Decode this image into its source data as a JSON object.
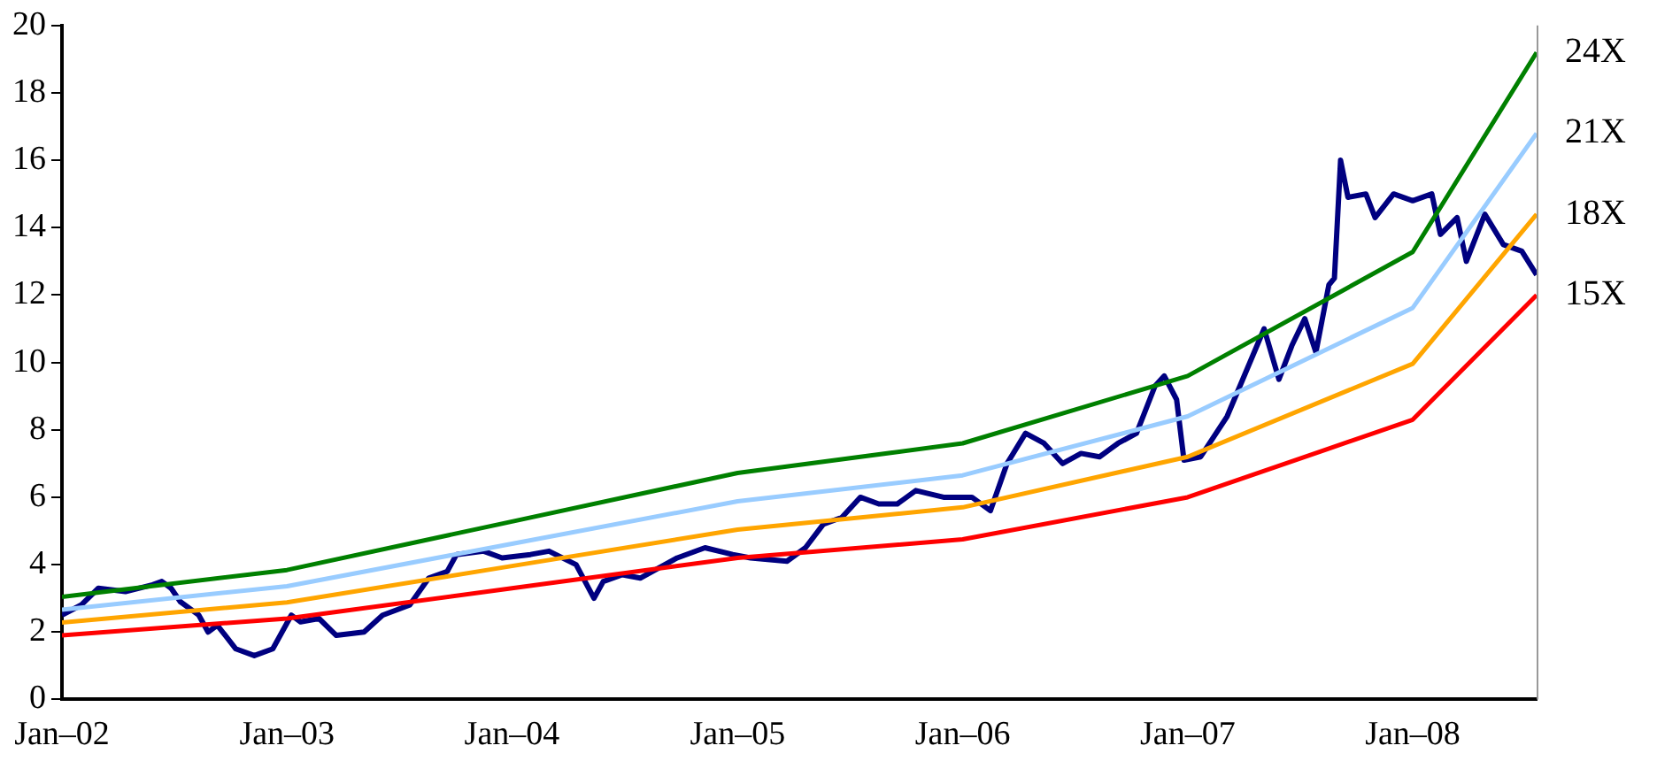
{
  "chart_data": {
    "type": "line",
    "xlim": [
      "2002-01-01",
      "2008-07-20"
    ],
    "xticks": [
      {
        "value": "2002-01-01",
        "label": "Jan–02"
      },
      {
        "value": "2003-01-01",
        "label": "Jan–03"
      },
      {
        "value": "2004-01-01",
        "label": "Jan–04"
      },
      {
        "value": "2005-01-01",
        "label": "Jan–05"
      },
      {
        "value": "2006-01-01",
        "label": "Jan–06"
      },
      {
        "value": "2007-01-01",
        "label": "Jan–07"
      },
      {
        "value": "2008-01-01",
        "label": "Jan–08"
      }
    ],
    "ylim": [
      0,
      20
    ],
    "yticks": [
      0,
      2,
      4,
      6,
      8,
      10,
      12,
      14,
      16,
      18,
      20
    ],
    "grid": false,
    "legend": false,
    "marker": "none",
    "line_style": "solid",
    "series": [
      {
        "name": "15X",
        "color": "#ff0000",
        "x": [
          "2002-01-01",
          "2003-01-01",
          "2004-01-01",
          "2005-01-01",
          "2006-01-01",
          "2007-01-01",
          "2008-01-01",
          "2008-07-20"
        ],
        "values": [
          1.9,
          2.4,
          3.3,
          4.2,
          4.75,
          6.0,
          8.3,
          12.0
        ]
      },
      {
        "name": "18X",
        "color": "#ffa500",
        "x": [
          "2002-01-01",
          "2003-01-01",
          "2004-01-01",
          "2005-01-01",
          "2006-01-01",
          "2007-01-01",
          "2008-01-01",
          "2008-07-20"
        ],
        "values": [
          2.28,
          2.88,
          3.96,
          5.04,
          5.7,
          7.2,
          9.96,
          14.4
        ]
      },
      {
        "name": "21X",
        "color": "#99ccff",
        "x": [
          "2002-01-01",
          "2003-01-01",
          "2004-01-01",
          "2005-01-01",
          "2006-01-01",
          "2007-01-01",
          "2008-01-01",
          "2008-07-20"
        ],
        "values": [
          2.66,
          3.36,
          4.62,
          5.88,
          6.65,
          8.4,
          11.62,
          16.8
        ]
      },
      {
        "name": "24X",
        "color": "#008000",
        "x": [
          "2002-01-01",
          "2003-01-01",
          "2004-01-01",
          "2005-01-01",
          "2006-01-01",
          "2007-01-01",
          "2008-01-01",
          "2008-07-20"
        ],
        "values": [
          3.04,
          3.84,
          5.28,
          6.72,
          7.6,
          9.6,
          13.28,
          19.2
        ]
      },
      {
        "color": "#000080",
        "x": [
          "2002-01-01",
          "2002-02-01",
          "2002-03-01",
          "2002-04-14",
          "2002-05-28",
          "2002-06-12",
          "2002-06-27",
          "2002-07-12",
          "2002-08-11",
          "2002-08-26",
          "2002-09-10",
          "2002-10-10",
          "2002-11-09",
          "2002-12-09",
          "2003-01-08",
          "2003-01-23",
          "2003-02-22",
          "2003-03-22",
          "2003-05-06",
          "2003-06-05",
          "2003-07-19",
          "2003-08-19",
          "2003-09-18",
          "2003-10-03",
          "2003-11-16",
          "2003-12-16",
          "2004-01-31",
          "2004-03-01",
          "2004-04-14",
          "2004-05-13",
          "2004-05-28",
          "2004-06-28",
          "2004-07-27",
          "2004-08-26",
          "2004-09-25",
          "2004-11-09",
          "2004-12-24",
          "2005-01-22",
          "2005-03-22",
          "2005-04-21",
          "2005-05-20",
          "2005-06-19",
          "2005-07-19",
          "2005-08-18",
          "2005-09-17",
          "2005-10-17",
          "2005-12-01",
          "2006-01-16",
          "2006-02-15",
          "2006-03-14",
          "2006-04-13",
          "2006-05-13",
          "2006-06-12",
          "2006-07-12",
          "2006-08-11",
          "2006-09-10",
          "2006-10-10",
          "2006-11-09",
          "2006-11-24",
          "2006-12-14",
          "2006-12-26",
          "2007-01-22",
          "2007-03-06",
          "2007-05-05",
          "2007-05-29",
          "2007-06-19",
          "2007-07-10",
          "2007-07-28",
          "2007-08-18",
          "2007-08-27",
          "2007-09-06",
          "2007-09-18",
          "2007-10-17",
          "2007-11-01",
          "2007-12-01",
          "2008-01-01",
          "2008-02-01",
          "2008-02-15",
          "2008-03-13",
          "2008-03-28",
          "2008-04-27",
          "2008-05-27",
          "2008-06-26",
          "2008-07-20"
        ],
        "values": [
          2.5,
          2.8,
          3.3,
          3.2,
          3.4,
          3.5,
          3.3,
          2.9,
          2.5,
          2.0,
          2.2,
          1.5,
          1.3,
          1.5,
          2.5,
          2.3,
          2.4,
          1.9,
          2.0,
          2.5,
          2.8,
          3.6,
          3.8,
          4.3,
          4.4,
          4.2,
          4.3,
          4.4,
          4.0,
          3.0,
          3.5,
          3.7,
          3.6,
          3.9,
          4.2,
          4.5,
          4.3,
          4.2,
          4.1,
          4.5,
          5.2,
          5.4,
          6.0,
          5.8,
          5.8,
          6.2,
          6.0,
          6.0,
          5.6,
          7.0,
          7.9,
          7.6,
          7.0,
          7.3,
          7.2,
          7.6,
          7.9,
          9.3,
          9.6,
          8.9,
          7.1,
          7.2,
          8.4,
          11.0,
          9.5,
          10.5,
          11.3,
          10.3,
          12.3,
          12.5,
          16.0,
          14.9,
          15.0,
          14.3,
          15.0,
          14.8,
          15.0,
          13.8,
          14.3,
          13.0,
          14.4,
          13.5,
          13.3,
          12.6
        ]
      }
    ]
  }
}
